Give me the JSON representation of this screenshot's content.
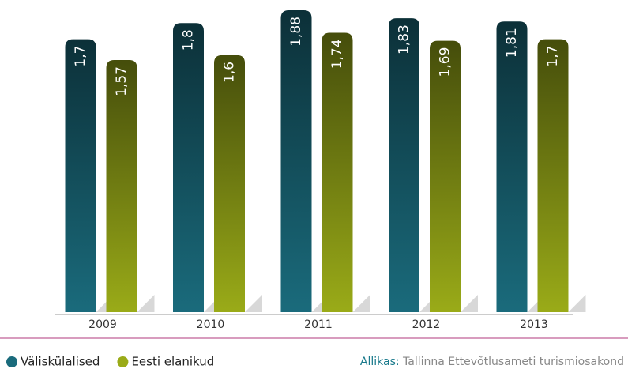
{
  "chart_data": {
    "type": "bar",
    "categories": [
      "2009",
      "2010",
      "2011",
      "2012",
      "2013"
    ],
    "series": [
      {
        "name": "Väliskülalised",
        "color": "#1a6b7c",
        "values": [
          1.7,
          1.8,
          1.88,
          1.83,
          1.81
        ],
        "value_labels": [
          "1,7",
          "1,8",
          "1,88",
          "1,83",
          "1,81"
        ]
      },
      {
        "name": "Eesti elanikud",
        "color": "#9aab18",
        "values": [
          1.57,
          1.6,
          1.74,
          1.69,
          1.7
        ],
        "value_labels": [
          "1,57",
          "1,6",
          "1,74",
          "1,69",
          "1,7"
        ]
      }
    ],
    "source_label": "Allikas:",
    "source": "Tallinna Ettevõtlusameti turismiosakond"
  }
}
